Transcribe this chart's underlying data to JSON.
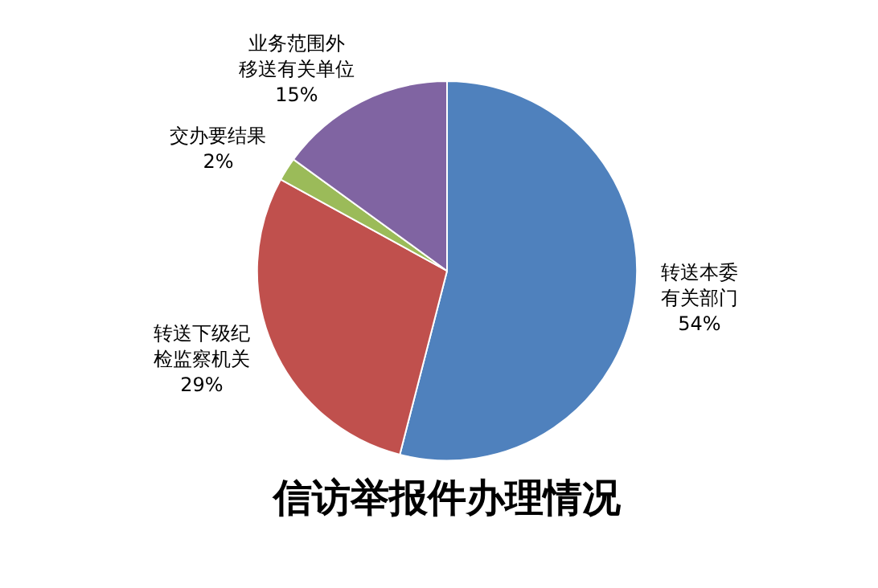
{
  "chart_data": {
    "type": "pie",
    "title": "信访举报件办理情况",
    "categories": [
      "转送本委有关部门",
      "转送下级纪检监察机关",
      "交办要结果",
      "业务范围外移送有关单位"
    ],
    "values": [
      54,
      29,
      2,
      15
    ],
    "colors": [
      "#4f81bd",
      "#c0504d",
      "#9bbb59",
      "#8064a2"
    ],
    "value_labels": [
      "54%",
      "29%",
      "2%",
      "15%"
    ]
  }
}
